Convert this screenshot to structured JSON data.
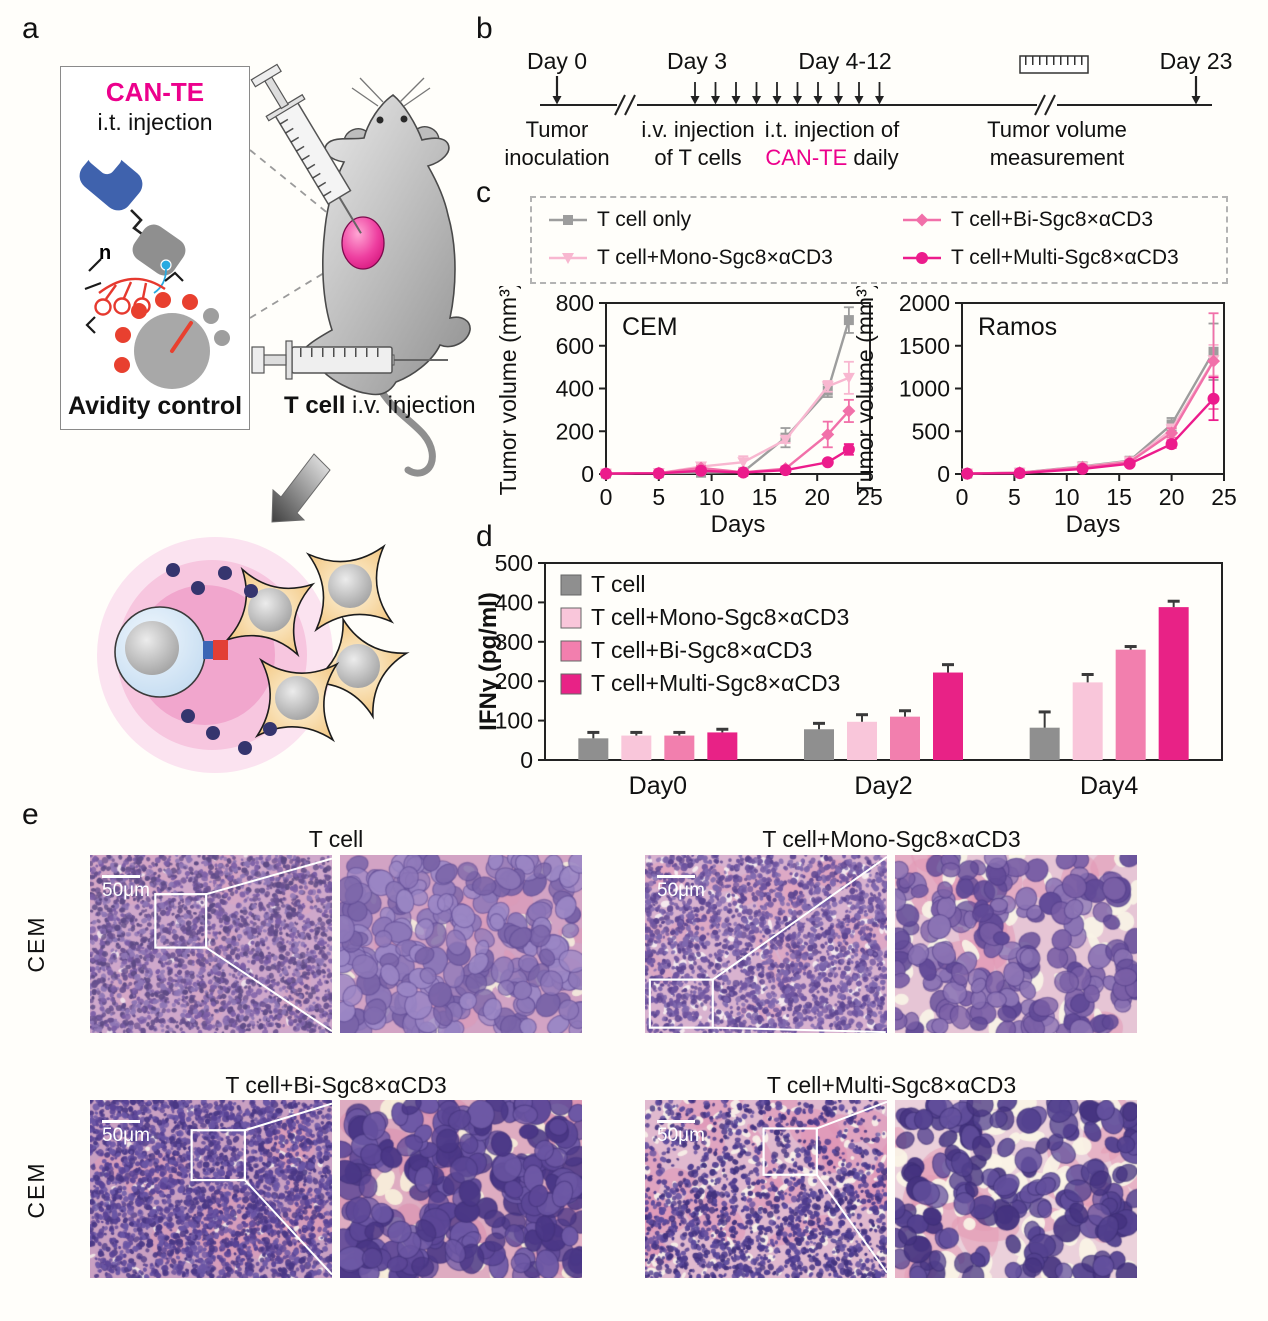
{
  "panels": {
    "a": {
      "letter": "a",
      "box_title": "CAN-TE",
      "box_subtitle": "i.t. injection",
      "box_caption": "Avidity control",
      "caption_bold": "T cell",
      "caption_rest": " i.v. injection"
    },
    "b": {
      "letter": "b",
      "day0": "Day 0",
      "day3": "Day 3",
      "day412": "Day 4-12",
      "day23": "Day 23",
      "cap_inoc_1": "Tumor",
      "cap_inoc_2": "inoculation",
      "cap_iv_1": "i.v. injection",
      "cap_iv_2": "of T cells",
      "cap_it_1": "i.t. injection of",
      "cap_it_2_hl": "CAN-TE",
      "cap_it_2_rest": " daily",
      "cap_meas_1": "Tumor volume",
      "cap_meas_2": "measurement"
    },
    "c": {
      "letter": "c",
      "legend": [
        {
          "label": "T cell only",
          "marker": "square",
          "color": "#9d9d9d"
        },
        {
          "label": "T cell+Mono-Sgc8×αCD3",
          "marker": "triangle-down",
          "color": "#f8b7d0"
        },
        {
          "label": "T cell+Bi-Sgc8×αCD3",
          "marker": "diamond",
          "color": "#f170a9"
        },
        {
          "label": "T cell+Multi-Sgc8×αCD3",
          "marker": "circle",
          "color": "#ec1c8c"
        }
      ]
    },
    "d": {
      "letter": "d"
    },
    "e": {
      "letter": "e",
      "scale_bar": "50μm",
      "row_label": "CEM",
      "groups": [
        {
          "title": "T cell"
        },
        {
          "title": "T cell+Mono-Sgc8×αCD3"
        },
        {
          "title": "T cell+Bi-Sgc8×αCD3"
        },
        {
          "title": "T cell+Multi-Sgc8×αCD3"
        }
      ]
    }
  },
  "colors": {
    "accent": "#ec008c",
    "tcell_gray": "#9d9d9d",
    "mono_pink": "#f8b7d0",
    "bi_pink": "#f170a9",
    "multi_magenta": "#ec1c8c"
  },
  "chart_data": [
    {
      "type": "line",
      "title": "CEM",
      "xlabel": "Days",
      "ylabel": "Tumor volume (mm³)",
      "xlim": [
        0,
        25
      ],
      "ylim": [
        0,
        800
      ],
      "xticks": [
        0,
        5,
        10,
        15,
        20,
        25
      ],
      "yticks": [
        0,
        200,
        400,
        600,
        800
      ],
      "x": [
        0,
        5,
        9,
        13,
        17,
        21,
        23
      ],
      "series": [
        {
          "name": "T cell only",
          "marker": "square",
          "color": "#9d9d9d",
          "values": [
            2,
            4,
            6,
            10,
            170,
            390,
            720
          ],
          "errors": [
            1,
            2,
            4,
            5,
            45,
            30,
            60
          ]
        },
        {
          "name": "T cell+Mono-Sgc8×αCD3",
          "marker": "triangle-down",
          "color": "#f8b7d0",
          "values": [
            2,
            4,
            35,
            55,
            160,
            410,
            450
          ],
          "errors": [
            1,
            2,
            12,
            28,
            15,
            25,
            75
          ]
        },
        {
          "name": "T cell+Bi-Sgc8×αCD3",
          "marker": "diamond",
          "color": "#f170a9",
          "values": [
            2,
            4,
            28,
            8,
            25,
            185,
            295
          ],
          "errors": [
            1,
            2,
            10,
            5,
            10,
            60,
            52
          ]
        },
        {
          "name": "T cell+Multi-Sgc8×αCD3",
          "marker": "circle",
          "color": "#ec1c8c",
          "values": [
            2,
            3,
            15,
            7,
            18,
            55,
            115
          ],
          "errors": [
            1,
            2,
            5,
            4,
            8,
            10,
            25
          ]
        }
      ]
    },
    {
      "type": "line",
      "title": "Ramos",
      "xlabel": "Days",
      "ylabel": "Tumor volume (mm³)",
      "xlim": [
        0,
        25
      ],
      "ylim": [
        0,
        2000
      ],
      "xticks": [
        0,
        5,
        10,
        15,
        20,
        25
      ],
      "yticks": [
        0,
        500,
        1000,
        1500,
        2000
      ],
      "x": [
        0.5,
        5.5,
        11.5,
        16,
        20,
        24
      ],
      "series": [
        {
          "name": "T cell only",
          "marker": "square",
          "color": "#9d9d9d",
          "values": [
            5,
            15,
            90,
            155,
            580,
            1430
          ],
          "errors": [
            3,
            6,
            15,
            25,
            75,
            330
          ]
        },
        {
          "name": "T cell+Mono-Sgc8×αCD3",
          "marker": "triangle-down",
          "color": "#f8b7d0",
          "values": [
            5,
            14,
            85,
            148,
            520,
            1330
          ],
          "errors": [
            3,
            6,
            12,
            22,
            60,
            180
          ]
        },
        {
          "name": "T cell+Bi-Sgc8×αCD3",
          "marker": "diamond",
          "color": "#f170a9",
          "values": [
            5,
            14,
            80,
            140,
            480,
            1320
          ],
          "errors": [
            3,
            6,
            12,
            20,
            55,
            560
          ]
        },
        {
          "name": "T cell+Multi-Sgc8×αCD3",
          "marker": "circle",
          "color": "#ec1c8c",
          "values": [
            5,
            10,
            60,
            120,
            350,
            880
          ],
          "errors": [
            3,
            5,
            10,
            15,
            45,
            250
          ]
        }
      ]
    },
    {
      "type": "bar",
      "title": "",
      "xlabel": "",
      "ylabel": "IFNγ (pg/ml)",
      "categories": [
        "Day0",
        "Day2",
        "Day4"
      ],
      "ylim": [
        0,
        500
      ],
      "yticks": [
        0,
        100,
        200,
        300,
        400,
        500
      ],
      "series": [
        {
          "name": "T cell",
          "color": "#8f8f8f",
          "values": [
            55,
            78,
            82
          ],
          "errors": [
            15,
            15,
            40
          ]
        },
        {
          "name": "T cell+Mono-Sgc8×αCD3",
          "color": "#f9c6da",
          "values": [
            62,
            97,
            197
          ],
          "errors": [
            8,
            18,
            20
          ]
        },
        {
          "name": "T cell+Bi-Sgc8×αCD3",
          "color": "#f27fae",
          "values": [
            62,
            110,
            280
          ],
          "errors": [
            8,
            15,
            8
          ]
        },
        {
          "name": "T cell+Multi-Sgc8×αCD3",
          "color": "#e82286",
          "values": [
            70,
            222,
            388
          ],
          "errors": [
            8,
            20,
            15
          ]
        }
      ]
    }
  ]
}
